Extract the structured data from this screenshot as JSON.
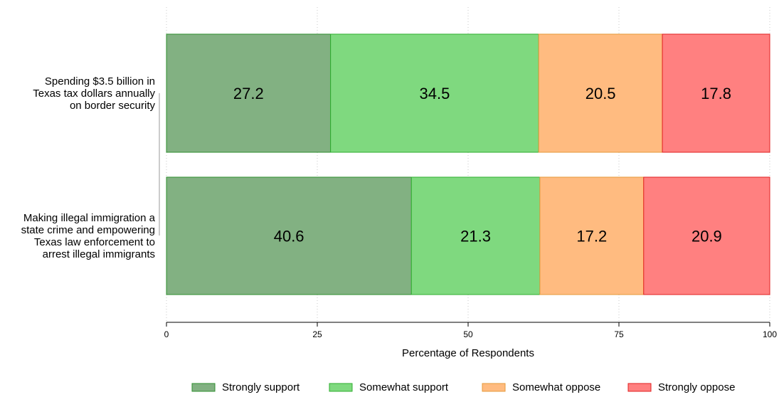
{
  "chart_data": {
    "type": "bar",
    "orientation": "horizontal",
    "stacked": true,
    "categories": [
      [
        "Spending $3.5 billion in",
        "Texas tax dollars annually",
        "on border security"
      ],
      [
        "Making illegal immigration a",
        "state crime and empowering",
        "Texas law enforcement to",
        "arrest illegal immigrants"
      ]
    ],
    "series": [
      {
        "name": "Strongly support",
        "values": [
          27.2,
          40.6
        ],
        "color": "#82b182",
        "stroke": "#2f8f2f"
      },
      {
        "name": "Somewhat support",
        "values": [
          34.5,
          21.3
        ],
        "color": "#7fd97f",
        "stroke": "#2fae2f"
      },
      {
        "name": "Somewhat oppose",
        "values": [
          20.5,
          17.2
        ],
        "color": "#ffbb80",
        "stroke": "#e59a3a"
      },
      {
        "name": "Strongly oppose",
        "values": [
          17.8,
          20.9
        ],
        "color": "#ff8080",
        "stroke": "#e02020"
      }
    ],
    "data_labels": [
      [
        "27.2",
        "34.5",
        "20.5",
        "17.8"
      ],
      [
        "40.6",
        "21.3",
        "17.2",
        "20.9"
      ]
    ],
    "xlabel": "Percentage of Respondents",
    "xlim": [
      0,
      100
    ],
    "xticks": [
      "0",
      "25",
      "50",
      "75",
      "100"
    ],
    "grid": true,
    "legend": "bottom"
  }
}
